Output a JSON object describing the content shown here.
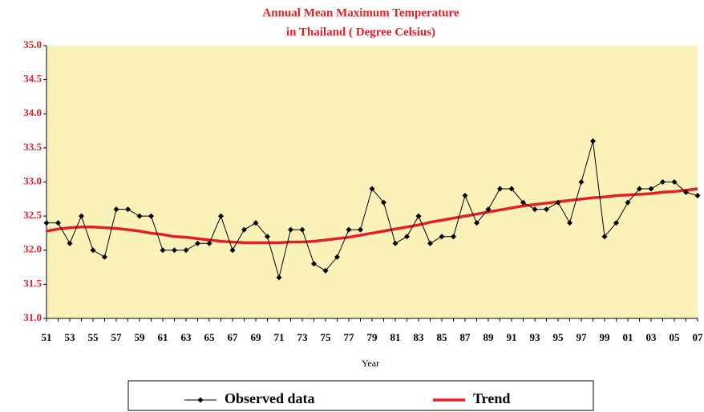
{
  "chart_data": {
    "type": "line",
    "title": [
      "Annual Mean Maximum Temperature",
      "in Thailand ( Degree Celsius)"
    ],
    "x_label": "Year",
    "categories": [
      "51",
      null,
      "53",
      null,
      "55",
      null,
      "57",
      null,
      "59",
      null,
      "61",
      null,
      "63",
      null,
      "65",
      null,
      "67",
      null,
      "69",
      null,
      "71",
      null,
      "73",
      null,
      "75",
      null,
      "77",
      null,
      "79",
      null,
      "81",
      null,
      "83",
      null,
      "85",
      null,
      "87",
      null,
      "89",
      null,
      "91",
      null,
      "93",
      null,
      "95",
      null,
      "97",
      null,
      "99",
      null,
      "01",
      null,
      "03",
      null,
      "05",
      null,
      "07"
    ],
    "series": [
      {
        "name": "Observed data",
        "color": "#000000",
        "marker": "diamond",
        "values": [
          32.4,
          32.4,
          32.1,
          32.5,
          32.0,
          31.9,
          32.6,
          32.6,
          32.5,
          32.5,
          32.0,
          32.0,
          32.0,
          32.1,
          32.1,
          32.5,
          32.0,
          32.3,
          32.4,
          32.2,
          31.6,
          32.3,
          32.3,
          31.8,
          31.7,
          31.9,
          32.3,
          32.3,
          32.9,
          32.7,
          32.1,
          32.2,
          32.5,
          32.1,
          32.2,
          32.2,
          32.8,
          32.4,
          32.6,
          32.9,
          32.9,
          32.7,
          32.6,
          32.6,
          32.7,
          32.4,
          33.0,
          33.6,
          32.2,
          32.4,
          32.7,
          32.9,
          32.9,
          33.0,
          33.0,
          32.85,
          32.8
        ]
      },
      {
        "name": "Trend",
        "color": "#e41e26",
        "values": [
          32.28,
          32.31,
          32.33,
          32.34,
          32.34,
          32.33,
          32.32,
          32.3,
          32.28,
          32.25,
          32.23,
          32.2,
          32.19,
          32.17,
          32.15,
          32.13,
          32.12,
          32.11,
          32.11,
          32.11,
          32.11,
          32.12,
          32.12,
          32.13,
          32.15,
          32.17,
          32.19,
          32.22,
          32.25,
          32.28,
          32.31,
          32.34,
          32.37,
          32.41,
          32.44,
          32.47,
          32.5,
          32.53,
          32.56,
          32.59,
          32.62,
          32.65,
          32.67,
          32.69,
          32.71,
          32.73,
          32.75,
          32.77,
          32.78,
          32.8,
          32.81,
          32.82,
          32.83,
          32.85,
          32.86,
          32.88,
          32.9
        ]
      }
    ],
    "ylim": [
      31,
      35
    ],
    "yticks": [
      {
        "value": 31,
        "label": "31.0"
      },
      31.5,
      {
        "value": 32,
        "label": "32.0"
      },
      32.5,
      {
        "value": 33,
        "label": "33.0"
      },
      33.5,
      {
        "value": 34,
        "label": "34.0"
      },
      34.5,
      {
        "value": 35,
        "label": "35.0"
      }
    ],
    "legend": "bottom"
  }
}
